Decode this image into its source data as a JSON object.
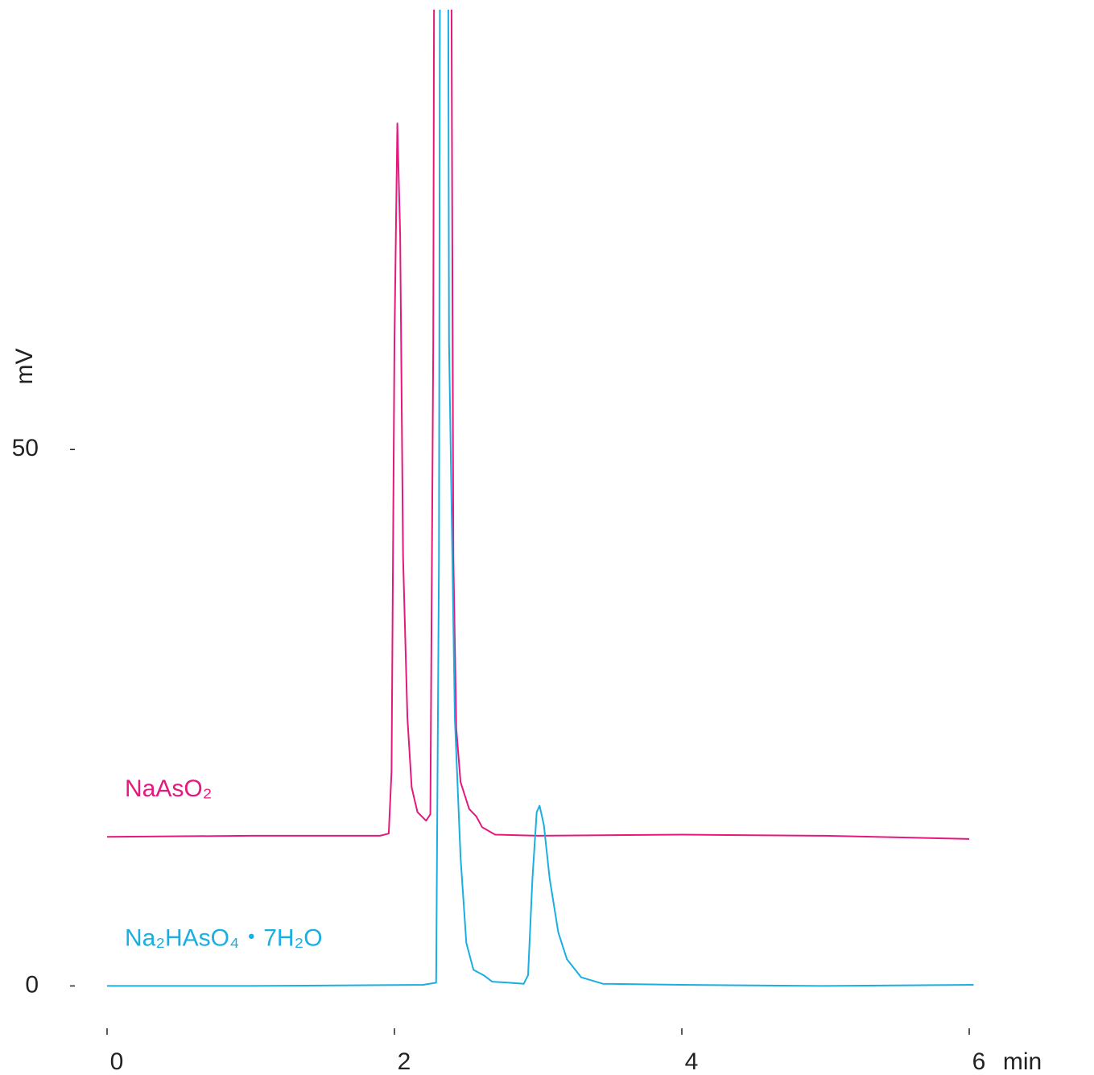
{
  "chart_data": {
    "type": "line",
    "xlabel": "min",
    "ylabel": "mV",
    "xlim": [
      0,
      6
    ],
    "ylim": [
      -4.4,
      91
    ],
    "xticks": [
      0,
      2,
      4,
      6
    ],
    "yticks": [
      0,
      50
    ],
    "series": [
      {
        "name": "NaAsO₂",
        "color": "#e4197f",
        "x": [
          0,
          1,
          1.9,
          1.96,
          1.98,
          2.0,
          2.02,
          2.04,
          2.06,
          2.09,
          2.12,
          2.16,
          2.22,
          2.25,
          2.27,
          2.28,
          2.39,
          2.41,
          2.43,
          2.46,
          2.52,
          2.57,
          2.61,
          2.7,
          3.0,
          4,
          5,
          6
        ],
        "values": [
          13.9,
          14.0,
          14.0,
          14.2,
          20,
          60,
          80.4,
          70,
          40,
          25,
          18.5,
          16.2,
          15.4,
          16,
          60,
          120,
          120,
          40,
          24,
          19,
          16.5,
          15.8,
          14.8,
          14.1,
          14.0,
          14.1,
          14.0,
          13.7
        ]
      },
      {
        "name": "Na₂HAsO₄・7H₂O",
        "color": "#1aaee2",
        "x": [
          0,
          1,
          2.2,
          2.29,
          2.31,
          2.32,
          2.37,
          2.38,
          2.42,
          2.46,
          2.5,
          2.55,
          2.62,
          2.68,
          2.8,
          2.9,
          2.93,
          2.96,
          2.99,
          3.01,
          3.04,
          3.08,
          3.14,
          3.2,
          3.3,
          3.45,
          4,
          5,
          6.03
        ],
        "values": [
          0,
          0,
          0.1,
          0.3,
          40,
          120,
          120,
          60,
          25,
          12,
          4,
          1.5,
          1.0,
          0.4,
          0.3,
          0.2,
          1,
          10,
          16.2,
          16.8,
          15,
          10,
          5,
          2.5,
          0.8,
          0.2,
          0.1,
          0,
          0.1
        ]
      }
    ]
  }
}
